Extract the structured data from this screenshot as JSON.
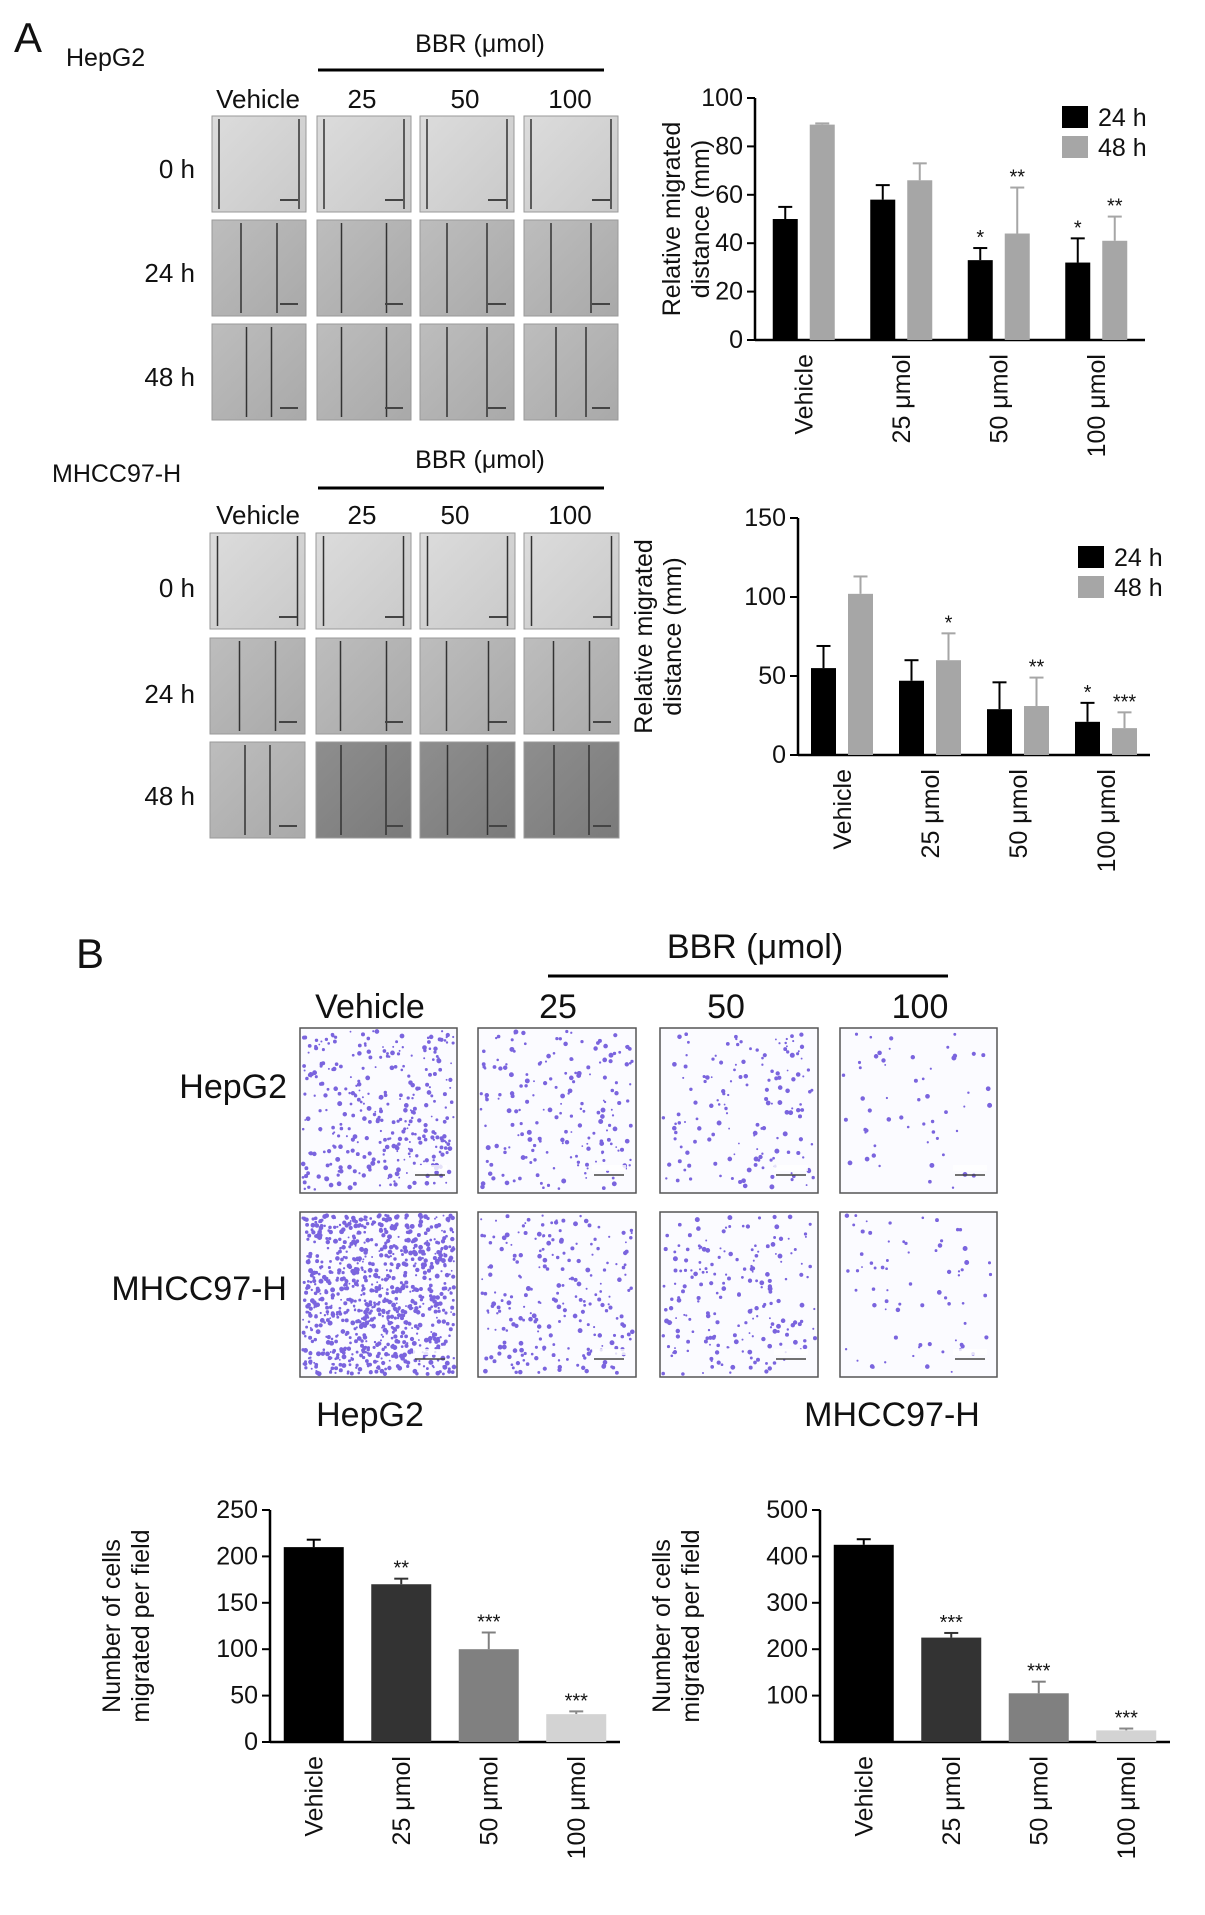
{
  "panels": {
    "a": "A",
    "b": "B"
  },
  "panel_a": {
    "hepg2": {
      "cell_line": "HepG2",
      "treatment_label": "BBR (μmol)",
      "columns": [
        "Vehicle",
        "25",
        "50",
        "100"
      ],
      "rows": [
        "0 h",
        "24 h",
        "48 h"
      ]
    },
    "mhcc": {
      "cell_line": "MHCC97-H",
      "treatment_label": "BBR (μmol)",
      "columns": [
        "Vehicle",
        "25",
        "50",
        "100"
      ],
      "rows": [
        "0 h",
        "24 h",
        "48 h"
      ]
    }
  },
  "panel_b": {
    "treatment_label": "BBR (μmol)",
    "columns": [
      "Vehicle",
      "25",
      "50",
      "100"
    ],
    "rows": [
      "HepG2",
      "MHCC97-H"
    ],
    "chart_titles": [
      "HepG2",
      "MHCC97-H"
    ]
  },
  "colors": {
    "24h": "#000000",
    "48h": "#a6a6a6",
    "bar_b": [
      "#000000",
      "#333333",
      "#808080",
      "#d3d3d3"
    ],
    "scratch_light": "#d4d4d4",
    "scratch_dark": "#8a8a8a",
    "stain": "#5a3fd6"
  },
  "chart_data": [
    {
      "type": "bar",
      "id": "hepg2-wound",
      "categories": [
        "Vehicle",
        "25 μmol",
        "50 μmol",
        "100 μmol"
      ],
      "ylabel": "Relative migrated distance (mm)",
      "ylim": [
        0,
        100
      ],
      "yticks": [
        0,
        20,
        40,
        60,
        80,
        100
      ],
      "legend": "top-right",
      "series": [
        {
          "name": "24 h",
          "values": [
            50,
            58,
            33,
            32
          ],
          "errors": [
            5,
            6,
            5,
            10
          ],
          "significance": [
            "",
            "",
            "*",
            "*"
          ]
        },
        {
          "name": "48 h",
          "values": [
            89,
            66,
            44,
            41
          ],
          "errors": [
            0.5,
            7,
            19,
            10
          ],
          "significance": [
            "",
            "",
            "**",
            "**"
          ]
        }
      ]
    },
    {
      "type": "bar",
      "id": "mhcc-wound",
      "categories": [
        "Vehicle",
        "25 μmol",
        "50 μmol",
        "100 μmol"
      ],
      "ylabel": "Relative migrated distance (mm)",
      "ylim": [
        0,
        150
      ],
      "yticks": [
        0,
        50,
        100,
        150
      ],
      "legend": "top-right",
      "series": [
        {
          "name": "24 h",
          "values": [
            55,
            47,
            29,
            21
          ],
          "errors": [
            14,
            13,
            17,
            12
          ],
          "significance": [
            "",
            "",
            "",
            "*"
          ]
        },
        {
          "name": "48 h",
          "values": [
            102,
            60,
            31,
            17
          ],
          "errors": [
            11,
            17,
            18,
            10
          ],
          "significance": [
            "",
            "*",
            "**",
            "***"
          ]
        }
      ]
    },
    {
      "type": "bar",
      "id": "hepg2-transwell",
      "categories": [
        "Vehicle",
        "25 μmol",
        "50 μmol",
        "100 μmol"
      ],
      "ylabel": "Number of cells migrated per field",
      "ylim": [
        0,
        250
      ],
      "yticks": [
        0,
        50,
        100,
        150,
        200,
        250
      ],
      "values": [
        210,
        170,
        100,
        30
      ],
      "errors": [
        8,
        6,
        18,
        3
      ],
      "significance": [
        "",
        "**",
        "***",
        "***"
      ]
    },
    {
      "type": "bar",
      "id": "mhcc-transwell",
      "categories": [
        "Vehicle",
        "25 μmol",
        "50 μmol",
        "100 μmol"
      ],
      "ylabel": "Number of cells migrated per field",
      "ylim": [
        0,
        500
      ],
      "yticks": [
        100,
        200,
        300,
        400,
        500
      ],
      "values": [
        425,
        225,
        105,
        25
      ],
      "errors": [
        12,
        10,
        25,
        4
      ],
      "significance": [
        "",
        "***",
        "***",
        "***"
      ]
    }
  ]
}
